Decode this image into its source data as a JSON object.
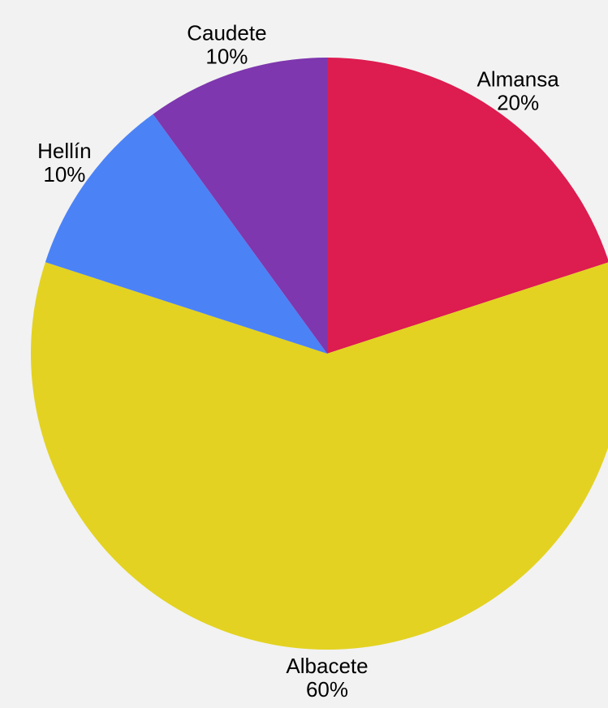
{
  "chart_data": {
    "type": "pie",
    "title": "",
    "start": "12 o'clock",
    "direction": "clockwise",
    "legend": "none",
    "slices": [
      {
        "name": "Almansa",
        "value": 20,
        "value_label": "20%",
        "color": "#dd1c50"
      },
      {
        "name": "Albacete",
        "value": 60,
        "value_label": "60%",
        "color": "#e3d221"
      },
      {
        "name": "Hellín",
        "value": 10,
        "value_label": "10%",
        "color": "#4b82f6"
      },
      {
        "name": "Caudete",
        "value": 10,
        "value_label": "10%",
        "color": "#7e37ae"
      }
    ]
  }
}
